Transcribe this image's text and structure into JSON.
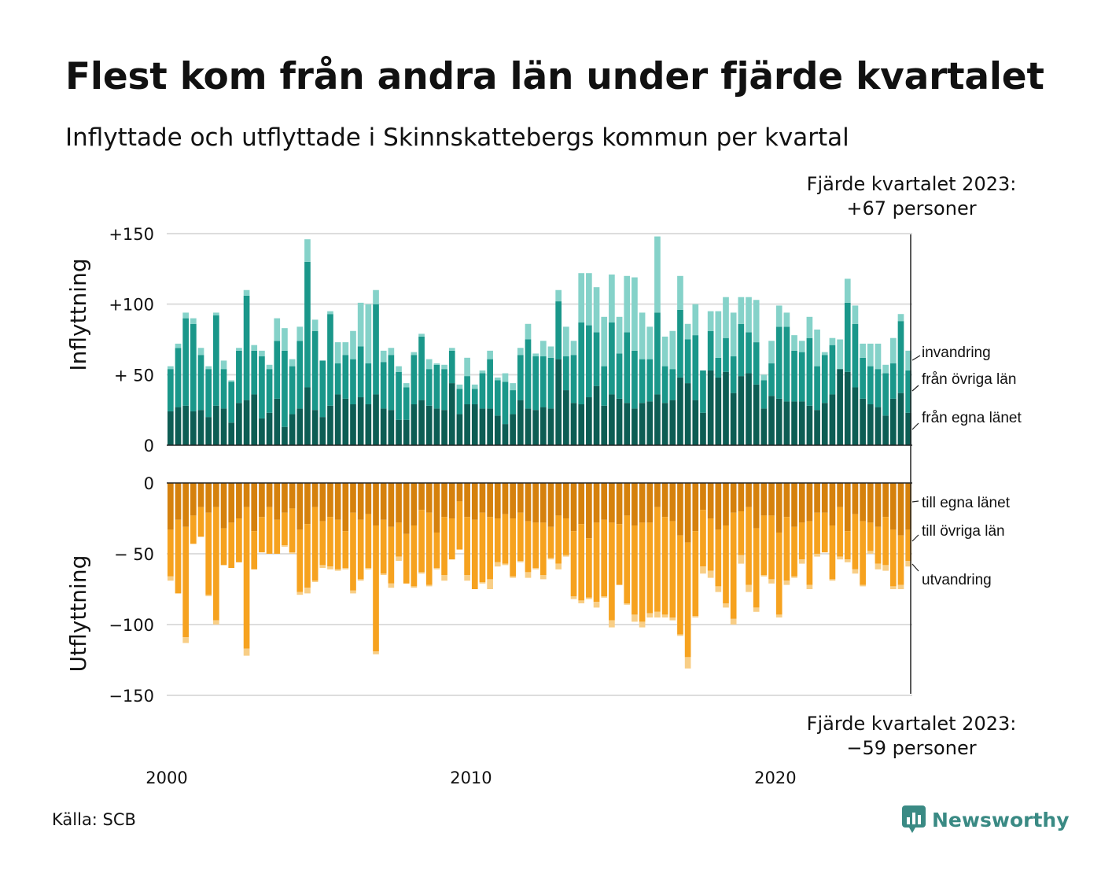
{
  "title": "Flest kom från andra län under fjärde kvartalet",
  "subtitle": "Inflyttade och utflyttade i Skinnskattebergs kommun per kvartal",
  "source": "Källa: SCB",
  "logo_text": "Newsworthy",
  "annotations": {
    "top": "Fjärde kvartalet 2023:\n+67 personer",
    "bottom": "Fjärde kvartalet 2023:\n−59 personer"
  },
  "colors": {
    "in_own": "#0d5d54",
    "in_other": "#1a978a",
    "in_immig": "#85d2c9",
    "out_own": "#d5810d",
    "out_other": "#f6a21f",
    "out_emig": "#f8ce86",
    "grid": "#dddddd",
    "brand": "#3a8a84"
  },
  "chart_data": {
    "type": "bar",
    "stacked": true,
    "x_start": "2000-Q1",
    "x_end": "2023-Q4",
    "x_ticks": [
      {
        "year": 2000,
        "label": "2000"
      },
      {
        "year": 2010,
        "label": "2010"
      },
      {
        "year": 2020,
        "label": "2020"
      }
    ],
    "y_ticks_in": [
      {
        "value": 150,
        "label": "+150"
      },
      {
        "value": 100,
        "label": "+100"
      },
      {
        "value": 50,
        "label": "+ 50"
      },
      {
        "value": 0,
        "label": "0"
      }
    ],
    "y_ticks_out": [
      {
        "value": 0,
        "label": "0"
      },
      {
        "value": -50,
        "label": "− 50"
      },
      {
        "value": -100,
        "label": "−100"
      },
      {
        "value": -150,
        "label": "−150"
      }
    ],
    "ylabel_in": "Inflyttning",
    "ylabel_out": "Utflyttning",
    "ylim_in": [
      0,
      150
    ],
    "ylim_out": [
      -150,
      0
    ],
    "series_in": [
      {
        "name": "från egna länet",
        "values": [
          24,
          27,
          28,
          24,
          25,
          20,
          28,
          26,
          16,
          30,
          32,
          36,
          19,
          23,
          33,
          13,
          22,
          26,
          41,
          25,
          20,
          28,
          36,
          33,
          29,
          34,
          29,
          36,
          26,
          25,
          18,
          18,
          29,
          32,
          28,
          26,
          25,
          44,
          22,
          29,
          29,
          26,
          26,
          21,
          15,
          22,
          32,
          26,
          25,
          27,
          26,
          61,
          39,
          30,
          29,
          34,
          42,
          28,
          36,
          33,
          30,
          26,
          30,
          31,
          36,
          30,
          32,
          48,
          44,
          32,
          23,
          53,
          48,
          52,
          37,
          49,
          51,
          43,
          26,
          35,
          33,
          31,
          31,
          31,
          28,
          25,
          30,
          36,
          54,
          52,
          41,
          33,
          29,
          27,
          21,
          33,
          37,
          23
        ]
      },
      {
        "name": "från övriga län",
        "values": [
          30,
          42,
          62,
          62,
          39,
          34,
          64,
          28,
          29,
          37,
          74,
          31,
          44,
          31,
          41,
          54,
          34,
          48,
          89,
          56,
          40,
          65,
          22,
          31,
          32,
          36,
          29,
          64,
          33,
          39,
          34,
          23,
          35,
          45,
          26,
          31,
          29,
          23,
          18,
          20,
          11,
          25,
          35,
          25,
          30,
          17,
          32,
          49,
          38,
          36,
          36,
          41,
          24,
          34,
          58,
          51,
          38,
          28,
          51,
          32,
          50,
          41,
          31,
          30,
          58,
          26,
          22,
          48,
          31,
          46,
          30,
          28,
          14,
          24,
          26,
          37,
          29,
          30,
          20,
          23,
          51,
          53,
          36,
          35,
          48,
          31,
          34,
          35,
          0,
          49,
          45,
          29,
          27,
          27,
          30,
          25,
          51,
          30
        ]
      },
      {
        "name": "invandring",
        "values": [
          2,
          3,
          4,
          4,
          5,
          2,
          2,
          6,
          1,
          2,
          4,
          4,
          4,
          3,
          16,
          16,
          5,
          10,
          16,
          8,
          0,
          2,
          15,
          9,
          20,
          31,
          42,
          10,
          8,
          5,
          4,
          3,
          2,
          2,
          7,
          1,
          3,
          2,
          3,
          13,
          3,
          2,
          6,
          2,
          6,
          5,
          5,
          11,
          2,
          11,
          8,
          8,
          21,
          10,
          35,
          37,
          32,
          35,
          34,
          26,
          40,
          52,
          33,
          23,
          54,
          21,
          27,
          24,
          11,
          22,
          0,
          14,
          33,
          29,
          31,
          19,
          25,
          30,
          4,
          16,
          15,
          10,
          11,
          8,
          15,
          26,
          2,
          5,
          21,
          17,
          13,
          10,
          16,
          18,
          6,
          18,
          5,
          14
        ]
      },
      {
        "name": "",
        "values": []
      }
    ],
    "series_out": [
      {
        "name": "till egna länet",
        "values": [
          33,
          26,
          31,
          23,
          17,
          21,
          17,
          32,
          28,
          25,
          17,
          34,
          24,
          17,
          26,
          21,
          18,
          33,
          29,
          17,
          27,
          24,
          26,
          34,
          21,
          26,
          22,
          30,
          26,
          31,
          28,
          36,
          30,
          19,
          21,
          35,
          24,
          25,
          13,
          24,
          26,
          21,
          24,
          25,
          22,
          25,
          21,
          27,
          28,
          28,
          31,
          23,
          25,
          34,
          29,
          39,
          28,
          26,
          28,
          29,
          23,
          30,
          28,
          28,
          17,
          24,
          27,
          37,
          42,
          34,
          19,
          25,
          33,
          30,
          21,
          20,
          17,
          32,
          23,
          23,
          35,
          24,
          31,
          28,
          27,
          21,
          21,
          30,
          17,
          34,
          22,
          27,
          28,
          31,
          24,
          33,
          37,
          33
        ]
      },
      {
        "name": "till övriga län",
        "values": [
          33,
          52,
          78,
          20,
          21,
          58,
          80,
          26,
          32,
          31,
          100,
          27,
          25,
          33,
          24,
          23,
          31,
          44,
          45,
          52,
          31,
          35,
          35,
          26,
          55,
          42,
          38,
          89,
          38,
          40,
          24,
          35,
          43,
          44,
          51,
          25,
          41,
          29,
          34,
          41,
          49,
          49,
          44,
          31,
          35,
          41,
          34,
          36,
          32,
          37,
          22,
          34,
          26,
          46,
          54,
          42,
          56,
          54,
          69,
          43,
          62,
          63,
          70,
          64,
          74,
          69,
          68,
          70,
          81,
          60,
          40,
          37,
          40,
          55,
          75,
          31,
          55,
          56,
          42,
          45,
          58,
          45,
          35,
          26,
          45,
          29,
          28,
          38,
          35,
          20,
          39,
          45,
          20,
          26,
          34,
          40,
          35,
          22
        ]
      },
      {
        "name": "utvandring",
        "values": [
          3,
          0,
          4,
          0,
          0,
          1,
          3,
          0,
          0,
          0,
          5,
          0,
          0,
          0,
          0,
          1,
          1,
          2,
          4,
          1,
          2,
          2,
          1,
          1,
          2,
          1,
          1,
          2,
          1,
          3,
          3,
          0,
          1,
          1,
          1,
          1,
          4,
          0,
          0,
          4,
          0,
          1,
          7,
          3,
          1,
          1,
          1,
          4,
          1,
          3,
          1,
          4,
          1,
          2,
          2,
          1,
          4,
          1,
          5,
          0,
          1,
          5,
          4,
          3,
          4,
          2,
          2,
          1,
          8,
          1,
          5,
          5,
          4,
          3,
          4,
          6,
          5,
          3,
          1,
          3,
          2,
          3,
          1,
          3,
          3,
          2,
          0,
          1,
          2,
          2,
          3,
          1,
          2,
          4,
          4,
          2,
          3,
          4
        ]
      }
    ],
    "legend_in": [
      "invandring",
      "från övriga län",
      "från egna länet"
    ],
    "legend_out": [
      "till egna länet",
      "till övriga län",
      "utvandring"
    ]
  }
}
